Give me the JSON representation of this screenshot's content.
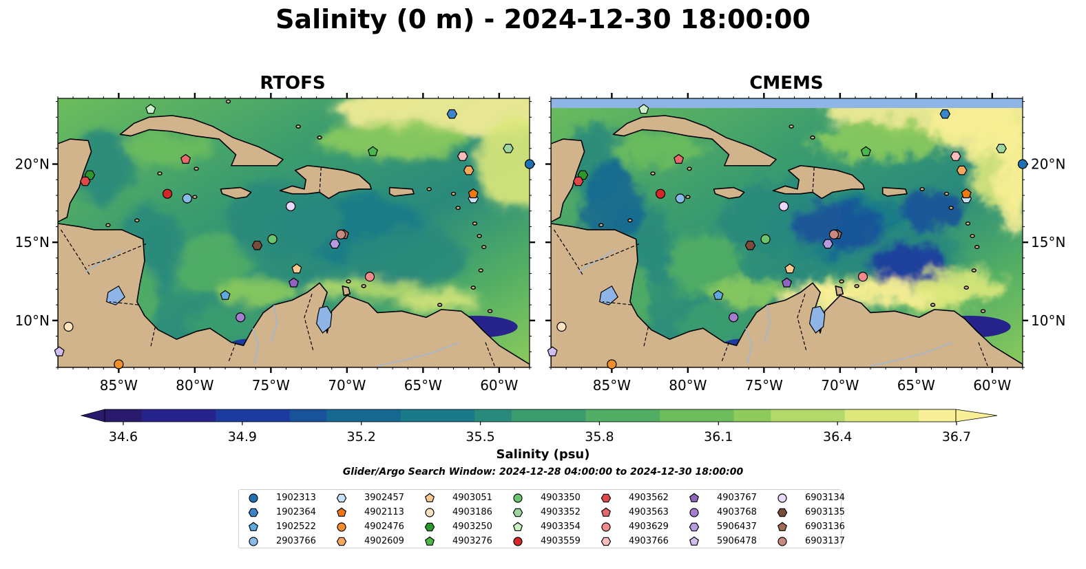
{
  "figure": {
    "title": "Salinity (0 m) - 2024-12-30 18:00:00",
    "panels": [
      "RTOFS",
      "CMEMS"
    ],
    "colorbar_label": "Salinity (psu)",
    "search_window": "Glider/Argo Search Window: 2024-12-28 04:00:00 to 2024-12-30 18:00:00"
  },
  "colors": {
    "land": "#d2b48c",
    "missing": "#8fb4e6",
    "colormap": [
      "#2a1a6e",
      "#26248c",
      "#1c3aa0",
      "#18529a",
      "#176890",
      "#1b7a88",
      "#2a8a7c",
      "#3b9c6e",
      "#52ae64",
      "#6dbd5c",
      "#8ccb5c",
      "#b4d96a",
      "#dce87a",
      "#f9ef96"
    ]
  },
  "map": {
    "lon_ticks": [
      "85°W",
      "80°W",
      "75°W",
      "70°W",
      "65°W",
      "60°W"
    ],
    "lat_ticks": [
      "10°N",
      "15°N",
      "20°N"
    ],
    "lon_values": [
      -85,
      -80,
      -75,
      -70,
      -65,
      -60
    ],
    "lat_values": [
      10,
      15,
      20
    ],
    "extent": {
      "lon": [
        -89,
        -58
      ],
      "lat": [
        7,
        24.2
      ]
    }
  },
  "colorbar": {
    "ticks": [
      "34.6",
      "34.9",
      "35.2",
      "35.5",
      "35.8",
      "36.1",
      "36.4",
      "36.7"
    ],
    "min": 34.6,
    "max": 36.7
  },
  "chart_data": {
    "type": "map",
    "variable": "Salinity",
    "units": "psu",
    "depth": "0 m",
    "time": "2024-12-30 18:00:00",
    "panels": [
      "RTOFS",
      "CMEMS"
    ],
    "vrange": [
      34.6,
      36.7
    ],
    "platforms": [
      {
        "id": "1902313",
        "marker": "circle",
        "color": "#1f6fb4",
        "lon": -58.0,
        "lat": 20.0
      },
      {
        "id": "1902364",
        "marker": "hexagon",
        "color": "#3a86c8",
        "lon": -63.1,
        "lat": 23.2
      },
      {
        "id": "1902522",
        "marker": "pentagon",
        "color": "#5fa8e0",
        "lon": -78.0,
        "lat": 11.6
      },
      {
        "id": "2903766",
        "marker": "circle",
        "color": "#88bce8",
        "lon": -80.5,
        "lat": 17.8
      },
      {
        "id": "3902457",
        "marker": "hexagon",
        "color": "#c6e2f8",
        "lon": -61.7,
        "lat": 17.8
      },
      {
        "id": "4902113",
        "marker": "pentagon",
        "color": "#ef7a12",
        "lon": -61.7,
        "lat": 18.1
      },
      {
        "id": "4902476",
        "marker": "circle",
        "color": "#f28e2b",
        "lon": -85.0,
        "lat": 7.2
      },
      {
        "id": "4902609",
        "marker": "hexagon",
        "color": "#f6a85c",
        "lon": -62.0,
        "lat": 19.6
      },
      {
        "id": "4903051",
        "marker": "pentagon",
        "color": "#f8c88e",
        "lon": -73.3,
        "lat": 13.3
      },
      {
        "id": "4903186",
        "marker": "circle",
        "color": "#fde2c0",
        "lon": -88.3,
        "lat": 9.6
      },
      {
        "id": "4903250",
        "marker": "hexagon",
        "color": "#2a9a2a",
        "lon": -86.9,
        "lat": 19.3
      },
      {
        "id": "4903276",
        "marker": "pentagon",
        "color": "#4cb84c",
        "lon": -68.3,
        "lat": 20.8
      },
      {
        "id": "4903350",
        "marker": "circle",
        "color": "#6cc46c",
        "lon": -74.9,
        "lat": 15.2
      },
      {
        "id": "4903352",
        "marker": "hexagon",
        "color": "#9ed69e",
        "lon": -59.4,
        "lat": 21.0
      },
      {
        "id": "4903354",
        "marker": "pentagon",
        "color": "#ccf2cc",
        "lon": -82.9,
        "lat": 23.5
      },
      {
        "id": "4903559",
        "marker": "circle",
        "color": "#d62728",
        "lon": -81.8,
        "lat": 18.1
      },
      {
        "id": "4903562",
        "marker": "hexagon",
        "color": "#e0484a",
        "lon": -87.2,
        "lat": 18.9
      },
      {
        "id": "4903563",
        "marker": "pentagon",
        "color": "#ea6a6c",
        "lon": -80.6,
        "lat": 20.3
      },
      {
        "id": "4903629",
        "marker": "circle",
        "color": "#f08a8c",
        "lon": -68.5,
        "lat": 12.8
      },
      {
        "id": "4903766",
        "marker": "hexagon",
        "color": "#f8bcbc",
        "lon": -62.4,
        "lat": 20.5
      },
      {
        "id": "4903767",
        "marker": "pentagon",
        "color": "#8f63c0",
        "lon": -73.5,
        "lat": 12.4
      },
      {
        "id": "4903768",
        "marker": "circle",
        "color": "#a27dd0",
        "lon": -77.0,
        "lat": 10.2
      },
      {
        "id": "5906437",
        "marker": "hexagon",
        "color": "#b89ae0",
        "lon": -70.8,
        "lat": 14.9
      },
      {
        "id": "5906478",
        "marker": "pentagon",
        "color": "#d2bdf0",
        "lon": -88.9,
        "lat": 8.0
      },
      {
        "id": "6903134",
        "marker": "circle",
        "color": "#ead8fa",
        "lon": -73.7,
        "lat": 17.3
      },
      {
        "id": "6903135",
        "marker": "hexagon",
        "color": "#7a4a3a",
        "lon": -75.9,
        "lat": 14.8
      },
      {
        "id": "6903136",
        "marker": "pentagon",
        "color": "#a06a55",
        "lon": -70.2,
        "lat": 15.5
      },
      {
        "id": "6903137",
        "marker": "circle",
        "color": "#c88a80",
        "lon": -70.4,
        "lat": 15.5
      }
    ]
  }
}
